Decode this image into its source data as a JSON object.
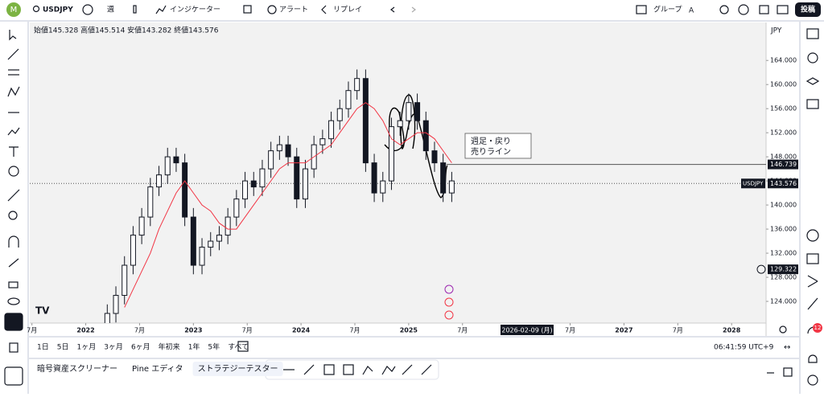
{
  "toolbar": {
    "symbol": "USDJPY",
    "interval": "週",
    "indicators": "インジケーター",
    "alerts": "アラート",
    "replay": "リプレイ",
    "group": "グループ",
    "group_letter": "A",
    "publish": "投稿"
  },
  "chart_data": {
    "type": "candlestick",
    "ohlc_legend": "始値145.328 高値145.514 安値143.282 終値143.576",
    "currency": "JPY",
    "x": [
      2022.2,
      2022.28,
      2022.36,
      2022.44,
      2022.52,
      2022.6,
      2022.68,
      2022.76,
      2022.84,
      2022.92,
      2023.0,
      2023.08,
      2023.16,
      2023.24,
      2023.32,
      2023.4,
      2023.48,
      2023.56,
      2023.64,
      2023.72,
      2023.8,
      2023.88,
      2023.96,
      2024.04,
      2024.12,
      2024.2,
      2024.28,
      2024.36,
      2024.44,
      2024.52,
      2024.6,
      2024.68,
      2024.76,
      2024.84,
      2024.92,
      2025.0,
      2025.08,
      2025.16,
      2025.24,
      2025.32,
      2025.4
    ],
    "open": [
      120,
      122,
      125,
      130,
      135,
      138,
      143,
      145,
      148,
      147,
      138,
      130,
      133,
      134,
      135,
      138,
      141,
      144,
      143,
      146,
      149,
      150,
      148,
      141,
      146,
      150,
      151,
      154,
      156,
      159,
      161,
      147,
      142,
      144,
      153,
      154,
      157,
      154,
      149,
      147,
      142
    ],
    "high": [
      123.5,
      126.5,
      131.5,
      136.5,
      139.5,
      144.5,
      146.5,
      149.5,
      149.5,
      148.5,
      139.5,
      134.5,
      135.5,
      136.5,
      139.5,
      142.5,
      145.5,
      145.5,
      147.5,
      150.5,
      151.5,
      151.5,
      149.5,
      147.5,
      151.5,
      152.5,
      155.5,
      157.5,
      160.5,
      162.5,
      162.5,
      148.5,
      145.5,
      154.5,
      155.5,
      158.5,
      158.5,
      155.5,
      150.5,
      148.5,
      145.5
    ],
    "low": [
      118.5,
      120.5,
      123.5,
      128.5,
      133.5,
      136.5,
      141.5,
      143.5,
      145.5,
      136.5,
      128.5,
      128.5,
      131.5,
      132.5,
      133.5,
      136.5,
      139.5,
      141.5,
      141.5,
      144.5,
      147.5,
      146.5,
      139.5,
      139.5,
      144.5,
      148.5,
      149.5,
      152.5,
      154.5,
      157.5,
      145.5,
      140.5,
      140.5,
      142.5,
      151.5,
      152.5,
      152.5,
      147.5,
      145.5,
      140.5,
      140.5
    ],
    "close": [
      122,
      125,
      130,
      135,
      138,
      143,
      145,
      148,
      147,
      138,
      130,
      133,
      134,
      135,
      138,
      141,
      144,
      143,
      146,
      149,
      150,
      148,
      141,
      146,
      150,
      151,
      154,
      156,
      159,
      161,
      147,
      142,
      144,
      153,
      154,
      157,
      154,
      149,
      147,
      142,
      144
    ],
    "up_color": "#ffffff",
    "down_color": "#131722",
    "ma": {
      "color": "#f23645",
      "values": [
        null,
        null,
        123,
        126,
        129,
        132,
        136,
        139,
        142,
        144,
        142,
        140,
        139,
        137,
        136,
        136,
        138,
        140,
        142,
        144,
        146,
        147,
        147,
        147,
        148,
        149,
        150,
        152,
        154,
        156,
        157,
        156,
        154,
        151,
        150,
        151,
        152,
        152,
        151,
        149,
        147
      ]
    },
    "xlim": [
      2021.48,
      2028.32
    ],
    "ylim": [
      120.4,
      170.3
    ],
    "xticks": [
      {
        "value": 2021.5,
        "label": "7月"
      },
      2022,
      {
        "value": 2022.5,
        "label": "7月"
      },
      2023,
      {
        "value": 2023.5,
        "label": "7月"
      },
      2024,
      {
        "value": 2024.5,
        "label": "7月"
      },
      2025,
      {
        "value": 2025.5,
        "label": "7月"
      },
      {
        "value": 2026.5,
        "label": "7月"
      },
      2027,
      {
        "value": 2027.5,
        "label": "7月"
      },
      2028
    ],
    "yticks": [
      {
        "value": 124,
        "label": "124.000"
      },
      {
        "value": 128,
        "label": "128.000"
      },
      {
        "value": 132,
        "label": "132.000"
      },
      {
        "value": 136,
        "label": "136.000"
      },
      {
        "value": 140,
        "label": "140.000"
      },
      {
        "value": 144,
        "label": "144.000"
      },
      {
        "value": 148,
        "label": "148.000"
      },
      {
        "value": 152,
        "label": "152.000"
      },
      {
        "value": 156,
        "label": "156.000"
      },
      {
        "value": 160,
        "label": "160.000"
      },
      {
        "value": 164,
        "label": "164.000"
      }
    ],
    "crosshair_date": "2026-02-09 (月)",
    "price_line": 146.739,
    "last_price": {
      "symbol": "USDJPY",
      "value": 143.576
    },
    "alert_price": 129.322,
    "annotation": [
      "週足・戻り",
      "売りライン"
    ]
  },
  "range_bar": {
    "ranges": [
      "1日",
      "5日",
      "1ヶ月",
      "3ヶ月",
      "6ヶ月",
      "年初来",
      "1年",
      "5年",
      "すべて"
    ],
    "clock": "06:41:59 UTC+9"
  },
  "panel_tabs": [
    "暗号資産スクリーナー",
    "Pine エディタ",
    "ストラテジーテスター"
  ],
  "notifications": 12
}
